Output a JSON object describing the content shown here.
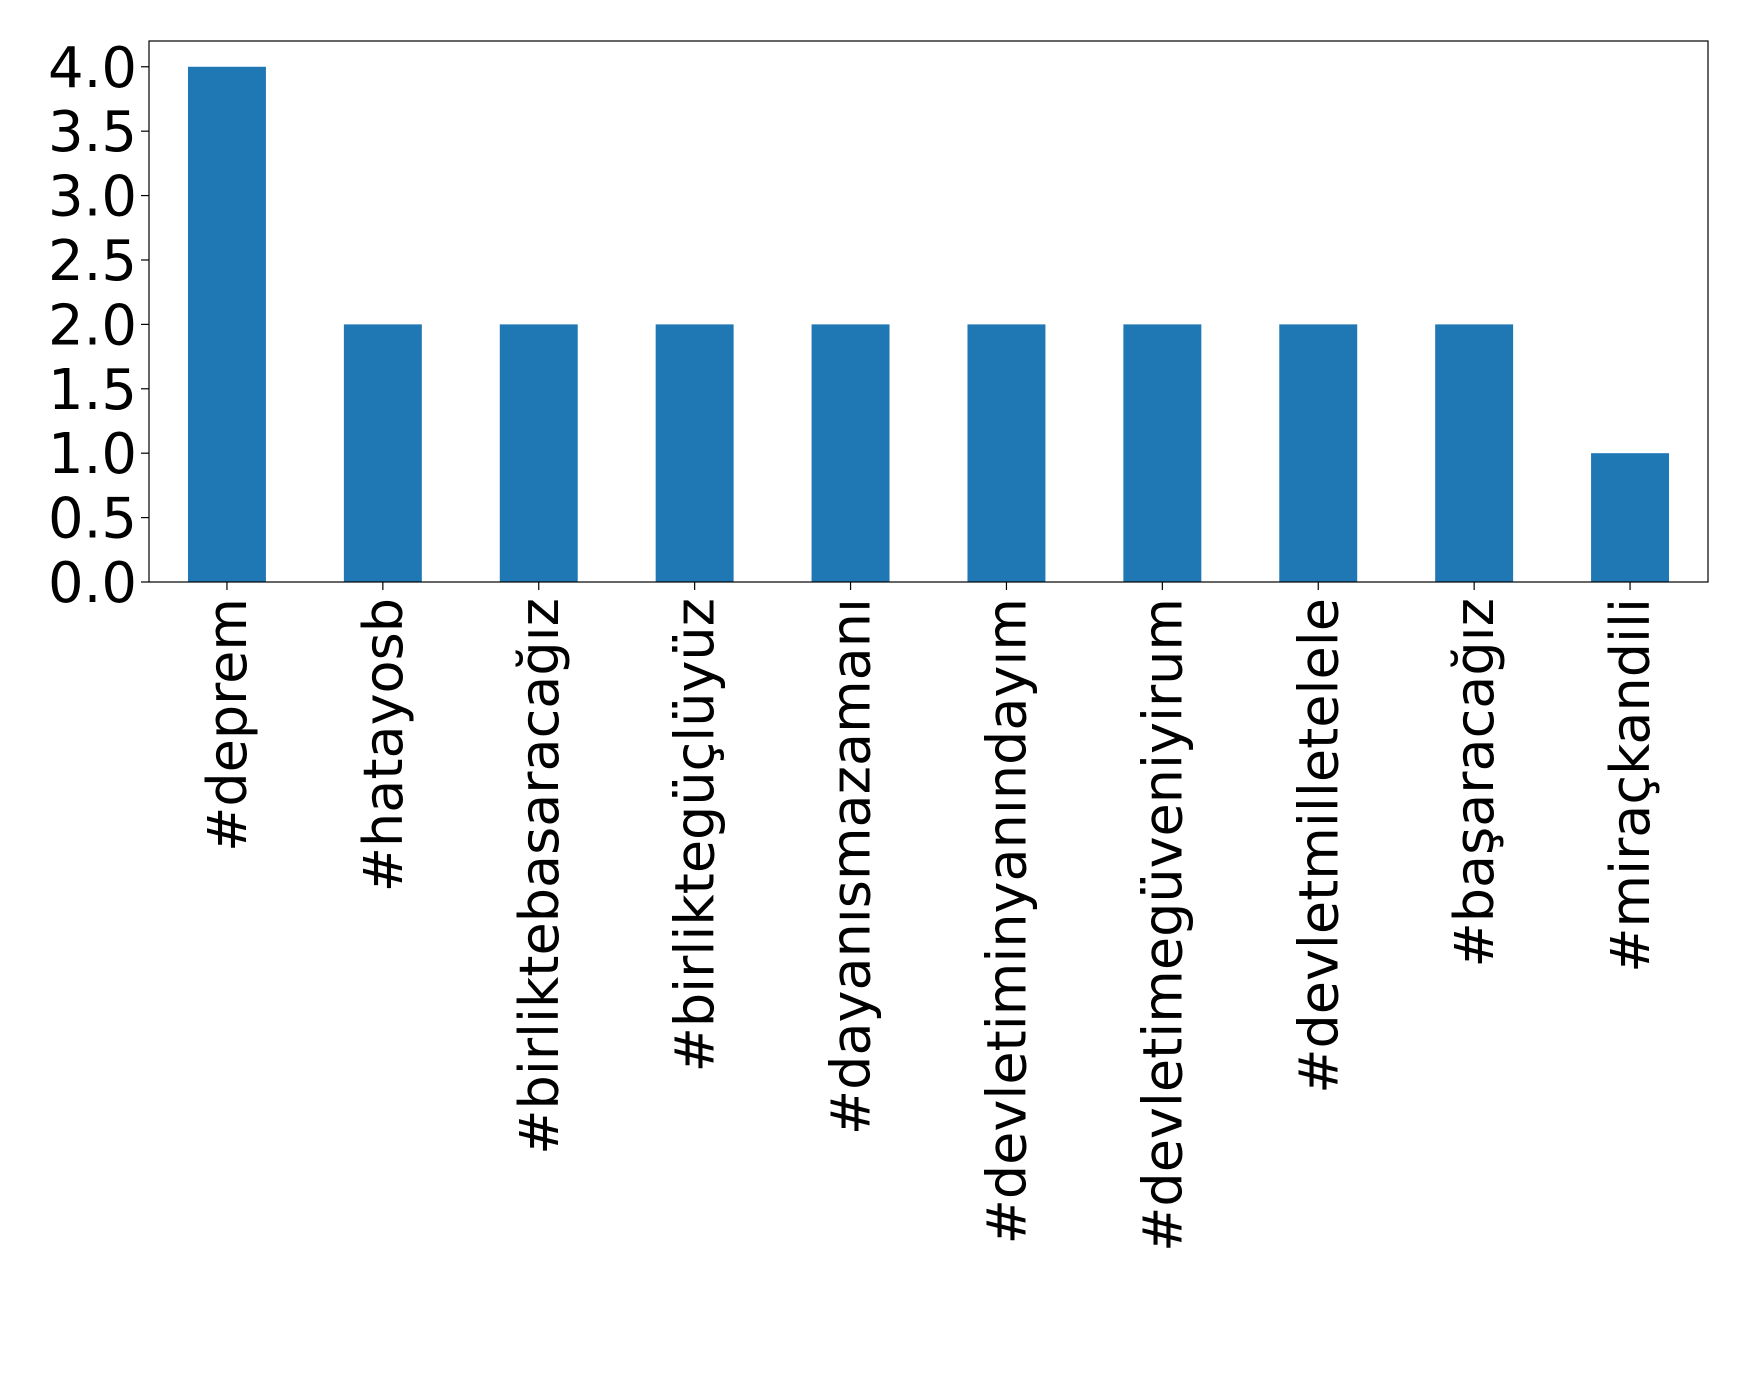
{
  "chart_data": {
    "type": "bar",
    "categories": [
      "#deprem",
      "#hatayosb",
      "#birliktebasaracağız",
      "#birliktegüçlüyüz",
      "#dayanısmazamanı",
      "#devletiminyanındayım",
      "#devletimegüveniyirum",
      "#devletmilletelele",
      "#başaracağız",
      "#miraçkandili"
    ],
    "values": [
      4,
      2,
      2,
      2,
      2,
      2,
      2,
      2,
      2,
      1
    ],
    "color": "#1f77b4",
    "ylim": [
      0,
      4.2
    ],
    "yticks": [
      {
        "value": 0,
        "label": "0.0"
      },
      {
        "value": 0.5,
        "label": "0.5"
      },
      {
        "value": 1,
        "label": "1.0"
      },
      {
        "value": 1.5,
        "label": "1.5"
      },
      {
        "value": 2,
        "label": "2.0"
      },
      {
        "value": 2.5,
        "label": "2.5"
      },
      {
        "value": 3,
        "label": "3.0"
      },
      {
        "value": 3.5,
        "label": "3.5"
      },
      {
        "value": 4,
        "label": "4.0"
      }
    ],
    "grid": false
  }
}
